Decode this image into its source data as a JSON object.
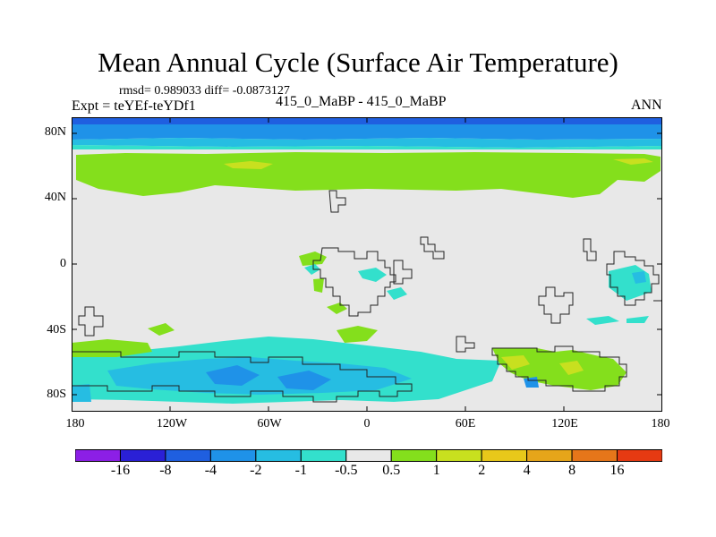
{
  "title": "Mean Annual Cycle (Surface Air Temperature)",
  "stats": "rmsd= 0.989033 diff= -0.0873127",
  "expt": "Expt = teYEf-teYDf1",
  "subtitle": "415_0_MaBP - 415_0_MaBP",
  "season": "ANN",
  "lat_labels": [
    "80N",
    "40N",
    "0",
    "40S",
    "80S"
  ],
  "lon_labels": [
    "180",
    "120W",
    "60W",
    "0",
    "60E",
    "120E",
    "180"
  ],
  "colorbar": {
    "labels": [
      "-16",
      "-8",
      "-4",
      "-2",
      "-1",
      "-0.5",
      "0.5",
      "1",
      "2",
      "4",
      "8",
      "16"
    ],
    "colors": [
      "#8c1fe6",
      "#2a20d6",
      "#1f5fe0",
      "#1f92e8",
      "#26bde2",
      "#33e0cc",
      "#e8e8e8",
      "#84df1c",
      "#c8e01f",
      "#e8c81a",
      "#e6a51a",
      "#e6761a",
      "#e63a12"
    ]
  }
}
